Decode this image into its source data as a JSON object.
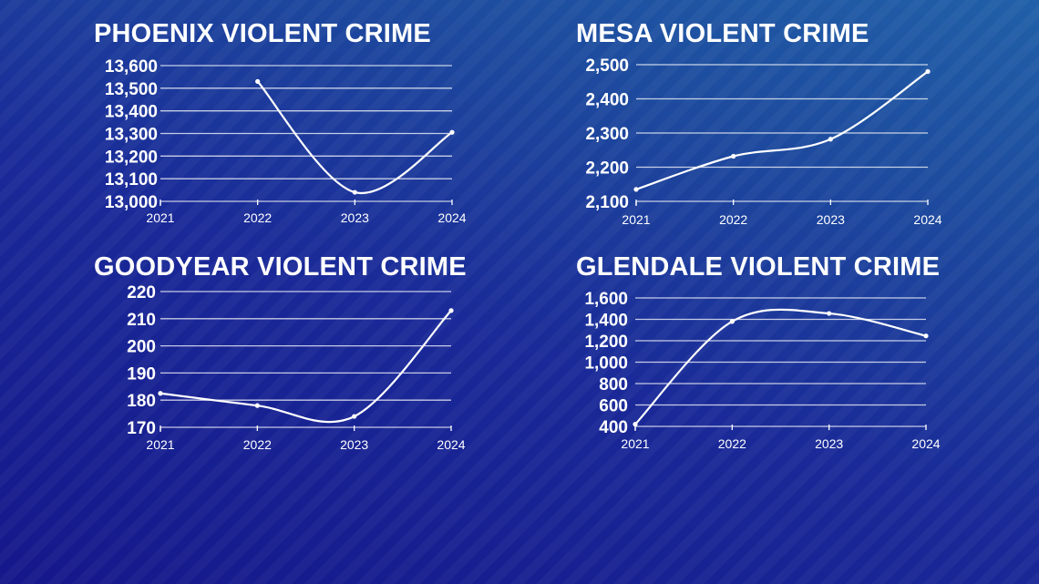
{
  "chart_data": [
    {
      "type": "line",
      "title": "PHOENIX VIOLENT CRIME",
      "categories": [
        "2021",
        "2022",
        "2023",
        "2024"
      ],
      "values": [
        null,
        13530,
        13040,
        13305
      ],
      "yticks": [
        13000,
        13100,
        13200,
        13300,
        13400,
        13500,
        13600
      ],
      "ylim": [
        13000,
        13600
      ],
      "grid": true,
      "xlabel": "",
      "ylabel": ""
    },
    {
      "type": "line",
      "title": "MESA VIOLENT CRIME",
      "categories": [
        "2021",
        "2022",
        "2023",
        "2024"
      ],
      "values": [
        2135,
        2232,
        2282,
        2480
      ],
      "yticks": [
        2100,
        2200,
        2300,
        2400,
        2500
      ],
      "ylim": [
        2100,
        2500
      ],
      "grid": true,
      "xlabel": "",
      "ylabel": ""
    },
    {
      "type": "line",
      "title": "GOODYEAR VIOLENT CRIME",
      "categories": [
        "2021",
        "2022",
        "2023",
        "2024"
      ],
      "values": [
        182.5,
        178,
        174,
        213
      ],
      "yticks": [
        170,
        180,
        190,
        200,
        210,
        220
      ],
      "ylim": [
        170,
        220
      ],
      "grid": true,
      "xlabel": "",
      "ylabel": ""
    },
    {
      "type": "line",
      "title": "GLENDALE VIOLENT CRIME",
      "categories": [
        "2021",
        "2022",
        "2023",
        "2024"
      ],
      "values": [
        420,
        1380,
        1455,
        1245
      ],
      "yticks": [
        400,
        600,
        800,
        1000,
        1200,
        1400,
        1600
      ],
      "ylim": [
        400,
        1600
      ],
      "grid": true,
      "xlabel": "",
      "ylabel": ""
    }
  ]
}
